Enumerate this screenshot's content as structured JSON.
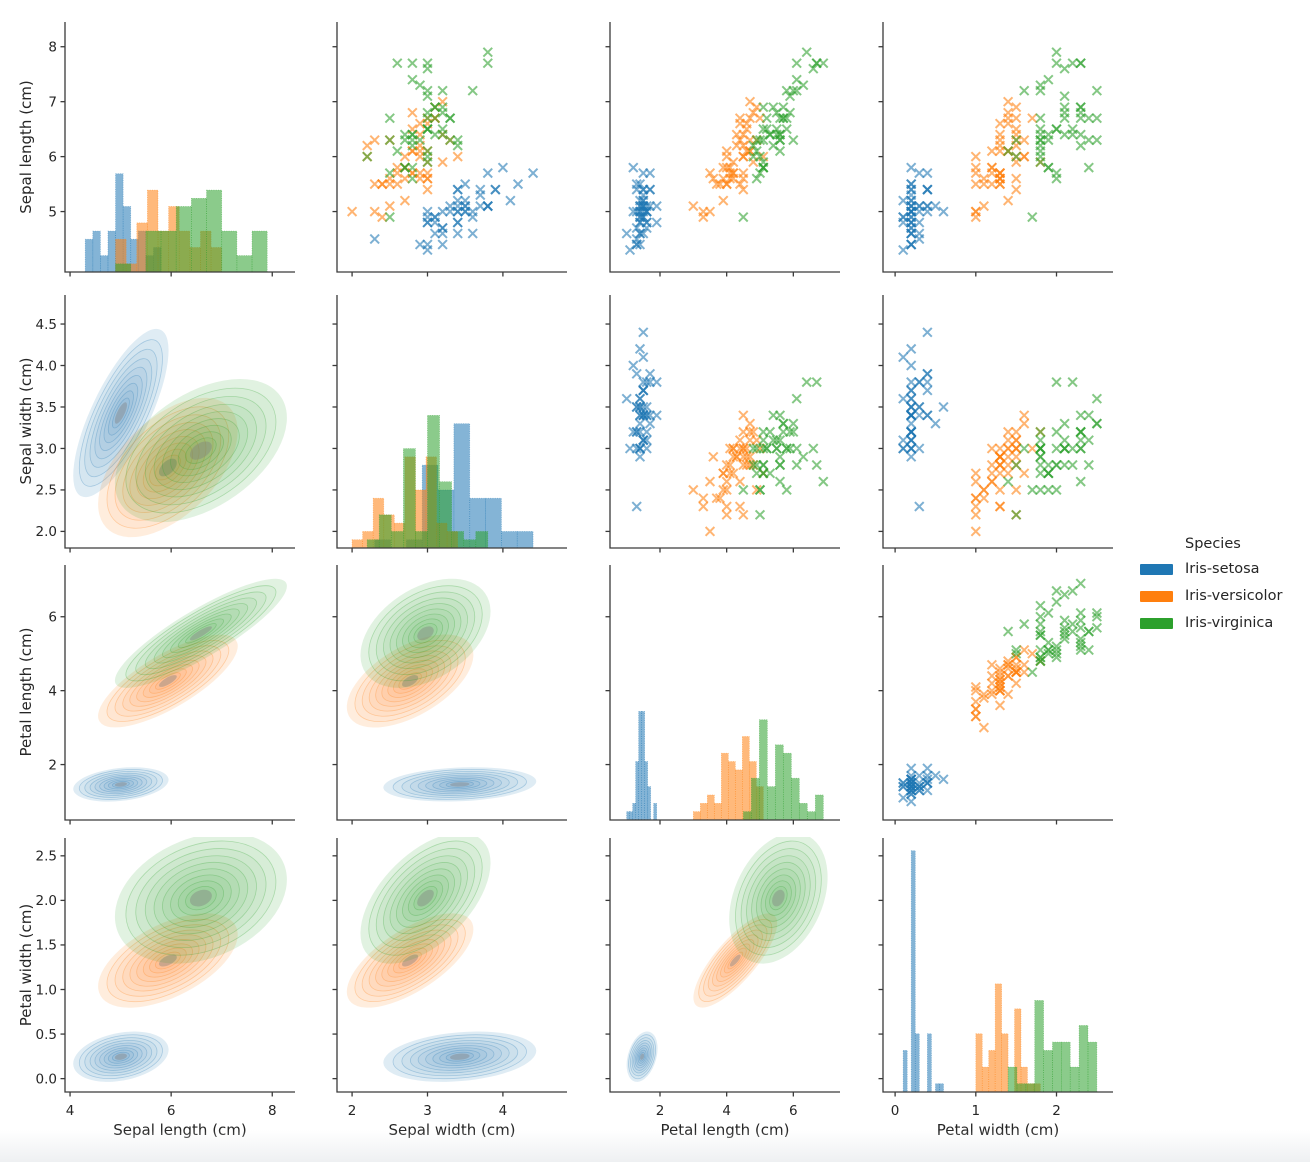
{
  "figure": {
    "background": "#ffffff",
    "text_color": "#262626",
    "spine_color": "#3a3a3a"
  },
  "legend": {
    "title": "Species",
    "entries": [
      {
        "label": "Iris-setosa",
        "color": "#1f77b4"
      },
      {
        "label": "Iris-versicolor",
        "color": "#ff7f0e"
      },
      {
        "label": "Iris-virginica",
        "color": "#2ca02c"
      }
    ]
  },
  "chart_data": {
    "type": "scatter",
    "subtype": "pairplot-matrix",
    "grid": {
      "rows": 4,
      "cols": 4,
      "diagonal": "histogram",
      "upper_triangle": "scatter-x-markers",
      "lower_triangle": "kde-filled-contours"
    },
    "hist_bins_per_species": 10,
    "marker": "x",
    "variables": [
      {
        "key": "sepal_length",
        "label": "Sepal length (cm)",
        "lim": [
          3.9,
          8.45
        ],
        "xticks": [
          4,
          6,
          8
        ],
        "xtick_labels": [
          "4",
          "6",
          "8"
        ],
        "yticks": [
          5,
          6,
          7,
          8
        ],
        "ytick_labels": [
          "5",
          "6",
          "7",
          "8"
        ]
      },
      {
        "key": "sepal_width",
        "label": "Sepal width (cm)",
        "lim": [
          1.8,
          4.85
        ],
        "xticks": [
          2,
          3,
          4
        ],
        "xtick_labels": [
          "2",
          "3",
          "4"
        ],
        "yticks": [
          2.0,
          2.5,
          3.0,
          3.5,
          4.0,
          4.5
        ],
        "ytick_labels": [
          "2.0",
          "2.5",
          "3.0",
          "3.5",
          "4.0",
          "4.5"
        ]
      },
      {
        "key": "petal_length",
        "label": "Petal length (cm)",
        "lim": [
          0.5,
          7.4
        ],
        "xticks": [
          2,
          4,
          6
        ],
        "xtick_labels": [
          "2",
          "4",
          "6"
        ],
        "yticks": [
          2,
          4,
          6
        ],
        "ytick_labels": [
          "2",
          "4",
          "6"
        ]
      },
      {
        "key": "petal_width",
        "label": "Petal width (cm)",
        "lim": [
          -0.15,
          2.7
        ],
        "xticks": [
          0,
          1,
          2
        ],
        "xtick_labels": [
          "0",
          "1",
          "2"
        ],
        "yticks": [
          0.0,
          0.5,
          1.0,
          1.5,
          2.0,
          2.5
        ],
        "ytick_labels": [
          "0.0",
          "0.5",
          "1.0",
          "1.5",
          "2.0",
          "2.5"
        ]
      }
    ],
    "series": [
      {
        "name": "Iris-setosa",
        "color": "#1f77b4",
        "points": [
          [
            5.1,
            3.5,
            1.4,
            0.2
          ],
          [
            4.9,
            3.0,
            1.4,
            0.2
          ],
          [
            4.7,
            3.2,
            1.3,
            0.2
          ],
          [
            4.6,
            3.1,
            1.5,
            0.2
          ],
          [
            5.0,
            3.6,
            1.4,
            0.2
          ],
          [
            5.4,
            3.9,
            1.7,
            0.4
          ],
          [
            4.6,
            3.4,
            1.4,
            0.3
          ],
          [
            5.0,
            3.4,
            1.5,
            0.2
          ],
          [
            4.4,
            2.9,
            1.4,
            0.2
          ],
          [
            4.9,
            3.1,
            1.5,
            0.1
          ],
          [
            5.4,
            3.7,
            1.5,
            0.2
          ],
          [
            4.8,
            3.4,
            1.6,
            0.2
          ],
          [
            4.8,
            3.0,
            1.4,
            0.1
          ],
          [
            4.3,
            3.0,
            1.1,
            0.1
          ],
          [
            5.8,
            4.0,
            1.2,
            0.2
          ],
          [
            5.7,
            4.4,
            1.5,
            0.4
          ],
          [
            5.4,
            3.9,
            1.3,
            0.4
          ],
          [
            5.1,
            3.5,
            1.4,
            0.3
          ],
          [
            5.7,
            3.8,
            1.7,
            0.3
          ],
          [
            5.1,
            3.8,
            1.5,
            0.3
          ],
          [
            5.4,
            3.4,
            1.7,
            0.2
          ],
          [
            5.1,
            3.7,
            1.5,
            0.4
          ],
          [
            4.6,
            3.6,
            1.0,
            0.2
          ],
          [
            5.1,
            3.3,
            1.7,
            0.5
          ],
          [
            4.8,
            3.4,
            1.9,
            0.2
          ],
          [
            5.0,
            3.0,
            1.6,
            0.2
          ],
          [
            5.0,
            3.4,
            1.6,
            0.4
          ],
          [
            5.2,
            3.5,
            1.5,
            0.2
          ],
          [
            5.2,
            3.4,
            1.4,
            0.2
          ],
          [
            4.7,
            3.2,
            1.6,
            0.2
          ],
          [
            4.8,
            3.1,
            1.6,
            0.2
          ],
          [
            5.4,
            3.4,
            1.5,
            0.4
          ],
          [
            5.2,
            4.1,
            1.5,
            0.1
          ],
          [
            5.5,
            4.2,
            1.4,
            0.2
          ],
          [
            4.9,
            3.1,
            1.5,
            0.2
          ],
          [
            5.0,
            3.2,
            1.2,
            0.2
          ],
          [
            5.5,
            3.5,
            1.3,
            0.2
          ],
          [
            4.9,
            3.6,
            1.4,
            0.1
          ],
          [
            4.4,
            3.0,
            1.3,
            0.2
          ],
          [
            5.1,
            3.4,
            1.5,
            0.2
          ],
          [
            5.0,
            3.5,
            1.3,
            0.3
          ],
          [
            4.5,
            2.3,
            1.3,
            0.3
          ],
          [
            4.4,
            3.2,
            1.3,
            0.2
          ],
          [
            5.0,
            3.5,
            1.6,
            0.6
          ],
          [
            5.1,
            3.8,
            1.9,
            0.4
          ],
          [
            4.8,
            3.0,
            1.4,
            0.3
          ],
          [
            5.1,
            3.8,
            1.6,
            0.2
          ],
          [
            4.6,
            3.2,
            1.4,
            0.2
          ],
          [
            5.3,
            3.7,
            1.5,
            0.2
          ],
          [
            5.0,
            3.3,
            1.4,
            0.2
          ]
        ]
      },
      {
        "name": "Iris-versicolor",
        "color": "#ff7f0e",
        "points": [
          [
            7.0,
            3.2,
            4.7,
            1.4
          ],
          [
            6.4,
            3.2,
            4.5,
            1.5
          ],
          [
            6.9,
            3.1,
            4.9,
            1.5
          ],
          [
            5.5,
            2.3,
            4.0,
            1.3
          ],
          [
            6.5,
            2.8,
            4.6,
            1.5
          ],
          [
            5.7,
            2.8,
            4.5,
            1.3
          ],
          [
            6.3,
            3.3,
            4.7,
            1.6
          ],
          [
            4.9,
            2.4,
            3.3,
            1.0
          ],
          [
            6.6,
            2.9,
            4.6,
            1.3
          ],
          [
            5.2,
            2.7,
            3.9,
            1.4
          ],
          [
            5.0,
            2.0,
            3.5,
            1.0
          ],
          [
            5.9,
            3.0,
            4.2,
            1.5
          ],
          [
            6.0,
            2.2,
            4.0,
            1.0
          ],
          [
            6.1,
            2.9,
            4.7,
            1.4
          ],
          [
            5.6,
            2.9,
            3.6,
            1.3
          ],
          [
            6.7,
            3.1,
            4.4,
            1.4
          ],
          [
            5.6,
            3.0,
            4.5,
            1.5
          ],
          [
            5.8,
            2.7,
            4.1,
            1.0
          ],
          [
            6.2,
            2.2,
            4.5,
            1.5
          ],
          [
            5.6,
            2.5,
            3.9,
            1.1
          ],
          [
            5.9,
            3.2,
            4.8,
            1.8
          ],
          [
            6.1,
            2.8,
            4.0,
            1.3
          ],
          [
            6.3,
            2.5,
            4.9,
            1.5
          ],
          [
            6.1,
            2.8,
            4.7,
            1.2
          ],
          [
            6.4,
            2.9,
            4.3,
            1.3
          ],
          [
            6.6,
            3.0,
            4.4,
            1.4
          ],
          [
            6.8,
            2.8,
            4.8,
            1.4
          ],
          [
            6.7,
            3.0,
            5.0,
            1.7
          ],
          [
            6.0,
            2.9,
            4.5,
            1.5
          ],
          [
            5.7,
            2.6,
            3.5,
            1.0
          ],
          [
            5.5,
            2.4,
            3.8,
            1.1
          ],
          [
            5.5,
            2.4,
            3.7,
            1.0
          ],
          [
            5.8,
            2.7,
            3.9,
            1.2
          ],
          [
            6.0,
            2.7,
            5.1,
            1.6
          ],
          [
            5.4,
            3.0,
            4.5,
            1.5
          ],
          [
            6.0,
            3.4,
            4.5,
            1.6
          ],
          [
            6.7,
            3.1,
            4.7,
            1.5
          ],
          [
            6.3,
            2.3,
            4.4,
            1.3
          ],
          [
            5.6,
            3.0,
            4.1,
            1.3
          ],
          [
            5.5,
            2.5,
            4.0,
            1.3
          ],
          [
            5.5,
            2.6,
            4.4,
            1.2
          ],
          [
            6.1,
            3.0,
            4.6,
            1.4
          ],
          [
            5.8,
            2.6,
            4.0,
            1.2
          ],
          [
            5.0,
            2.3,
            3.3,
            1.0
          ],
          [
            5.6,
            2.7,
            4.2,
            1.3
          ],
          [
            5.7,
            3.0,
            4.2,
            1.2
          ],
          [
            5.7,
            2.9,
            4.2,
            1.3
          ],
          [
            6.2,
            2.9,
            4.3,
            1.3
          ],
          [
            5.1,
            2.5,
            3.0,
            1.1
          ],
          [
            5.7,
            2.8,
            4.1,
            1.3
          ]
        ]
      },
      {
        "name": "Iris-virginica",
        "color": "#2ca02c",
        "points": [
          [
            6.3,
            3.3,
            6.0,
            2.5
          ],
          [
            5.8,
            2.7,
            5.1,
            1.9
          ],
          [
            7.1,
            3.0,
            5.9,
            2.1
          ],
          [
            6.3,
            2.9,
            5.6,
            1.8
          ],
          [
            6.5,
            3.0,
            5.8,
            2.2
          ],
          [
            7.6,
            3.0,
            6.6,
            2.1
          ],
          [
            4.9,
            2.5,
            4.5,
            1.7
          ],
          [
            7.3,
            2.9,
            6.3,
            1.8
          ],
          [
            6.7,
            2.5,
            5.8,
            1.8
          ],
          [
            7.2,
            3.6,
            6.1,
            2.5
          ],
          [
            6.5,
            3.2,
            5.1,
            2.0
          ],
          [
            6.4,
            2.7,
            5.3,
            1.9
          ],
          [
            6.8,
            3.0,
            5.5,
            2.1
          ],
          [
            5.7,
            2.5,
            5.0,
            2.0
          ],
          [
            5.8,
            2.8,
            5.1,
            2.4
          ],
          [
            6.4,
            3.2,
            5.3,
            2.3
          ],
          [
            6.5,
            3.0,
            5.5,
            1.8
          ],
          [
            7.7,
            3.8,
            6.7,
            2.2
          ],
          [
            7.7,
            2.6,
            6.9,
            2.3
          ],
          [
            6.0,
            2.2,
            5.0,
            1.5
          ],
          [
            6.9,
            3.2,
            5.7,
            2.3
          ],
          [
            5.6,
            2.8,
            4.9,
            2.0
          ],
          [
            7.7,
            2.8,
            6.7,
            2.0
          ],
          [
            6.3,
            2.7,
            4.9,
            1.8
          ],
          [
            6.7,
            3.3,
            5.7,
            2.1
          ],
          [
            7.2,
            3.2,
            6.0,
            1.8
          ],
          [
            6.2,
            2.8,
            4.8,
            1.8
          ],
          [
            6.1,
            3.0,
            4.9,
            1.8
          ],
          [
            6.4,
            2.8,
            5.6,
            2.1
          ],
          [
            7.2,
            3.0,
            5.8,
            1.6
          ],
          [
            7.4,
            2.8,
            6.1,
            1.9
          ],
          [
            7.9,
            3.8,
            6.4,
            2.0
          ],
          [
            6.4,
            2.8,
            5.6,
            2.2
          ],
          [
            6.3,
            2.8,
            5.1,
            1.5
          ],
          [
            6.1,
            2.6,
            5.6,
            1.4
          ],
          [
            7.7,
            3.0,
            6.1,
            2.3
          ],
          [
            6.3,
            3.4,
            5.6,
            2.4
          ],
          [
            6.4,
            3.1,
            5.5,
            1.8
          ],
          [
            6.0,
            3.0,
            4.8,
            1.8
          ],
          [
            6.9,
            3.1,
            5.4,
            2.1
          ],
          [
            6.7,
            3.1,
            5.6,
            2.4
          ],
          [
            6.9,
            3.1,
            5.1,
            2.3
          ],
          [
            5.8,
            2.7,
            5.1,
            1.9
          ],
          [
            6.8,
            3.2,
            5.9,
            2.3
          ],
          [
            6.7,
            3.3,
            5.7,
            2.5
          ],
          [
            6.7,
            3.0,
            5.2,
            2.3
          ],
          [
            6.3,
            2.5,
            5.0,
            1.9
          ],
          [
            6.5,
            3.0,
            5.2,
            2.0
          ],
          [
            6.2,
            3.4,
            5.4,
            2.3
          ],
          [
            5.9,
            3.0,
            5.1,
            1.8
          ]
        ]
      }
    ]
  }
}
